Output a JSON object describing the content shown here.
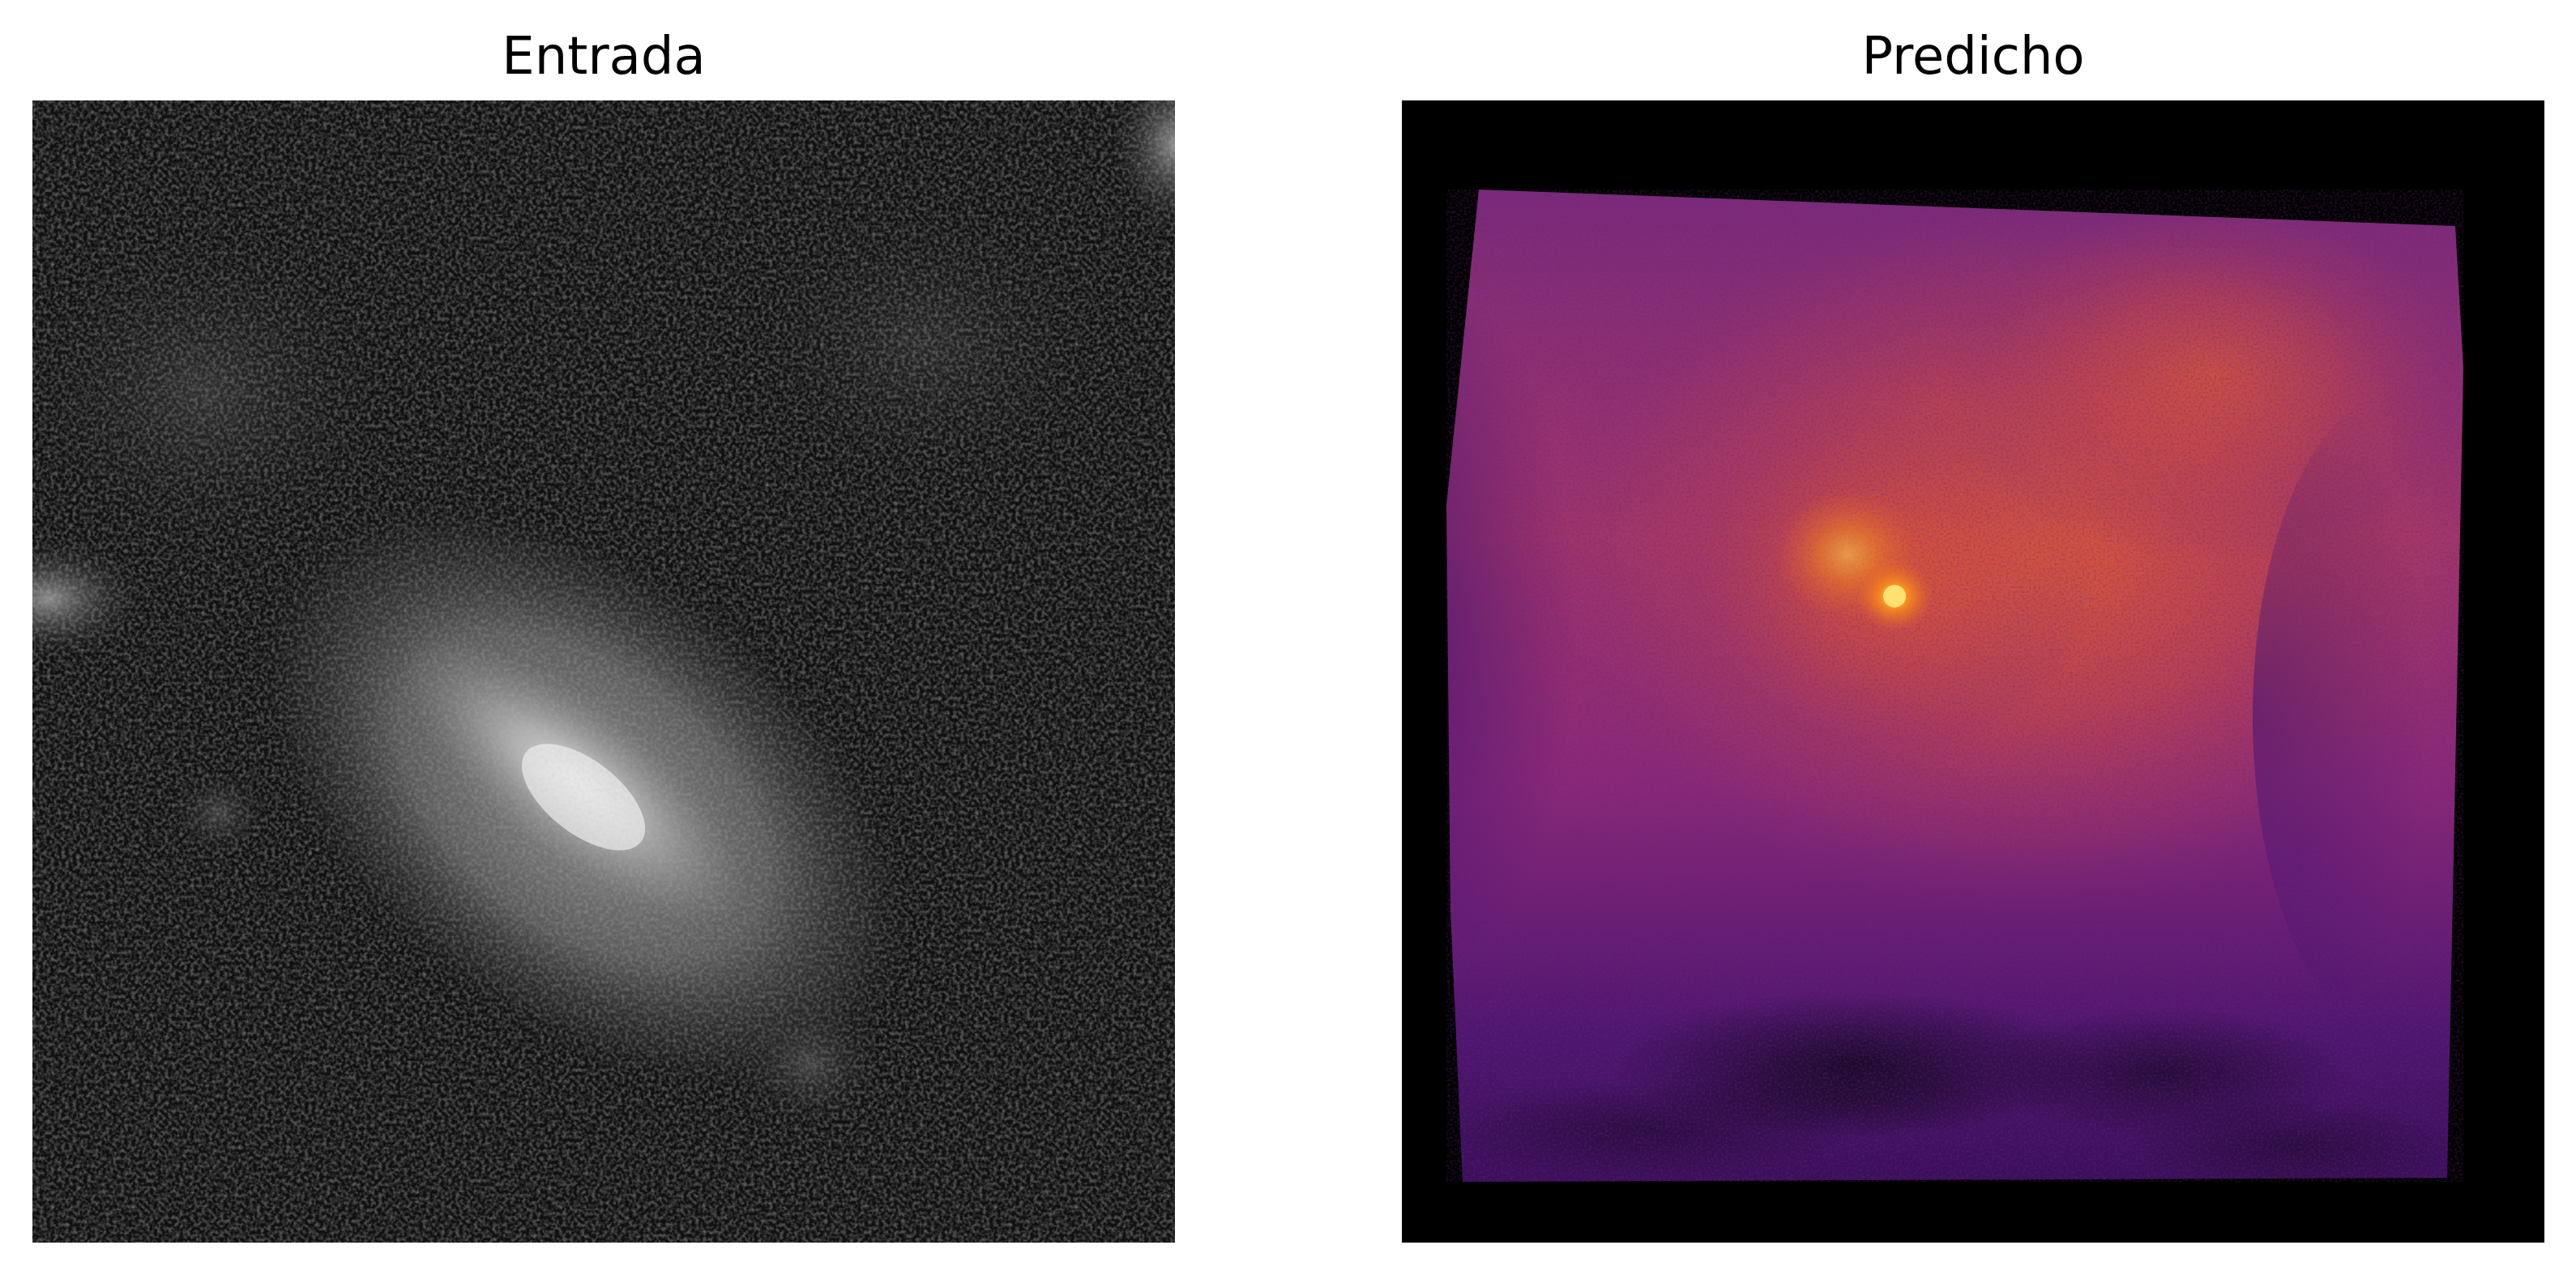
{
  "panels": [
    {
      "title": "Entrada",
      "colormap": "gray",
      "colors": {
        "background": "#0d0d0d",
        "core": "#f2f2f2",
        "halo": "#8a8a8a"
      }
    },
    {
      "title": "Predicho",
      "colormap": "inferno",
      "colors": {
        "background": "#000000",
        "low": "#4a1470",
        "mid": "#b83a5a",
        "high": "#e8612c",
        "peak": "#ffc23a"
      }
    }
  ]
}
